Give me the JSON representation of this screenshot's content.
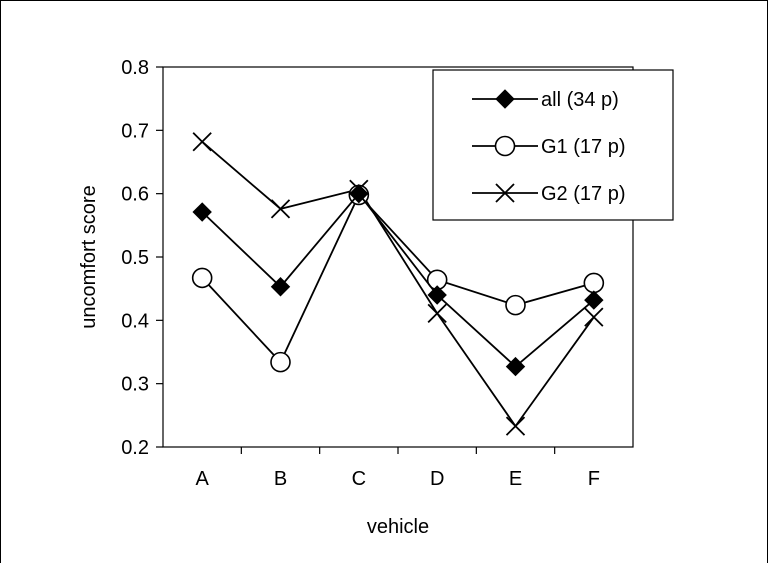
{
  "chart_data": {
    "type": "line",
    "title": "",
    "xlabel": "vehicle",
    "ylabel": "uncomfort score",
    "categories": [
      "A",
      "B",
      "C",
      "D",
      "E",
      "F"
    ],
    "ylim": [
      0.2,
      0.8
    ],
    "yticks": [
      "0.2",
      "0.3",
      "0.4",
      "0.5",
      "0.6",
      "0.7",
      "0.8"
    ],
    "grid": false,
    "legend_position": "top-right",
    "series": [
      {
        "name": "all (34 p)",
        "marker": "diamond-filled",
        "color": "#000000",
        "values": [
          0.571,
          0.453,
          0.6,
          0.44,
          0.327,
          0.432
        ]
      },
      {
        "name": "G1 (17 p)",
        "marker": "circle-open",
        "color": "#000000",
        "values": [
          0.467,
          0.334,
          0.598,
          0.464,
          0.424,
          0.459
        ]
      },
      {
        "name": "G2 (17 p)",
        "marker": "x",
        "color": "#000000",
        "values": [
          0.682,
          0.576,
          0.607,
          0.411,
          0.233,
          0.405
        ]
      }
    ]
  }
}
